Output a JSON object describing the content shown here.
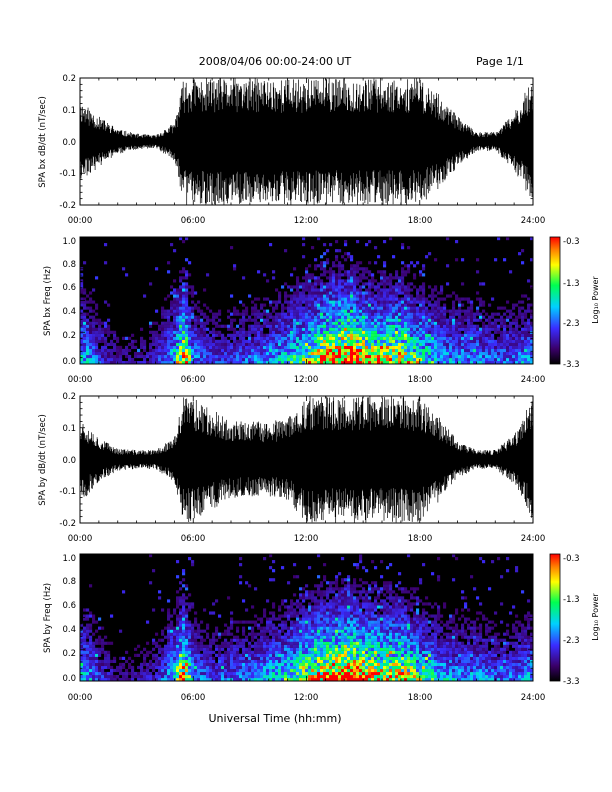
{
  "header": {
    "title": "2008/04/06  00:00-24:00 UT",
    "page": "Page 1/1"
  },
  "xaxis": {
    "label": "Universal Time (hh:mm)",
    "ticks": [
      "00:00",
      "06:00",
      "12:00",
      "18:00",
      "24:00"
    ]
  },
  "colorbar": {
    "label": "Log₁₀ Power",
    "ticks": [
      "-0.3",
      "-1.3",
      "-2.3",
      "-3.3"
    ]
  },
  "colors": {
    "background": "#ffffff",
    "trace": "#000000",
    "spectrogram_bg": "#000000"
  },
  "chart_data": [
    {
      "type": "line",
      "ylabel": "SPA bx dB/dt (nT/sec)",
      "xlim": [
        0,
        24
      ],
      "ylim": [
        -0.2,
        0.2
      ],
      "yticks": [
        "0.2",
        "0.1",
        "0.0",
        "-0.1",
        "-0.2"
      ],
      "x_unit": "hours UT",
      "envelope": {
        "x": [
          0,
          1,
          2,
          3,
          4,
          5,
          5.5,
          6,
          8,
          10,
          11,
          12,
          13,
          14,
          15,
          16,
          17,
          18,
          19,
          20,
          21,
          22,
          23,
          24
        ],
        "upper": [
          0.13,
          0.08,
          0.04,
          0.025,
          0.02,
          0.06,
          0.2,
          0.2,
          0.2,
          0.2,
          0.2,
          0.2,
          0.2,
          0.2,
          0.2,
          0.2,
          0.2,
          0.2,
          0.15,
          0.08,
          0.03,
          0.03,
          0.09,
          0.2
        ],
        "lower": [
          -0.13,
          -0.08,
          -0.04,
          -0.025,
          -0.02,
          -0.06,
          -0.2,
          -0.2,
          -0.2,
          -0.2,
          -0.2,
          -0.2,
          -0.2,
          -0.2,
          -0.2,
          -0.2,
          -0.2,
          -0.2,
          -0.15,
          -0.08,
          -0.03,
          -0.03,
          -0.09,
          -0.2
        ]
      }
    },
    {
      "type": "heatmap",
      "ylabel": "SPA bx Freq (Hz)",
      "xlim": [
        0,
        24
      ],
      "ylim": [
        0,
        1.0
      ],
      "yticks": [
        "1.0",
        "0.8",
        "0.6",
        "0.4",
        "0.2",
        "0.0"
      ],
      "zlabel": "Log10 Power",
      "zlim": [
        -3.3,
        -0.3
      ],
      "activity": {
        "x": [
          0,
          1,
          2,
          3,
          4,
          5,
          5.5,
          6,
          7,
          8,
          9,
          10,
          11,
          12,
          13,
          14,
          15,
          16,
          17,
          18,
          19,
          20,
          21,
          22,
          23,
          24
        ],
        "level": [
          0.5,
          0.25,
          0.15,
          0.15,
          0.2,
          0.45,
          0.85,
          0.35,
          0.25,
          0.25,
          0.3,
          0.35,
          0.45,
          0.6,
          0.85,
          1.0,
          0.8,
          0.7,
          0.75,
          0.55,
          0.4,
          0.35,
          0.35,
          0.3,
          0.3,
          0.4
        ]
      }
    },
    {
      "type": "line",
      "ylabel": "SPA by dB/dt (nT/sec)",
      "xlim": [
        0,
        24
      ],
      "ylim": [
        -0.2,
        0.2
      ],
      "yticks": [
        "0.2",
        "0.1",
        "0.0",
        "-0.1",
        "-0.2"
      ],
      "x_unit": "hours UT",
      "envelope": {
        "x": [
          0,
          1,
          2,
          3,
          4,
          5,
          5.5,
          6,
          8,
          10,
          11,
          12,
          13,
          14,
          15,
          16,
          17,
          18,
          19,
          20,
          21,
          22,
          23,
          24
        ],
        "upper": [
          0.14,
          0.07,
          0.035,
          0.03,
          0.03,
          0.07,
          0.2,
          0.2,
          0.12,
          0.12,
          0.13,
          0.2,
          0.2,
          0.2,
          0.2,
          0.2,
          0.2,
          0.2,
          0.14,
          0.06,
          0.03,
          0.03,
          0.08,
          0.2
        ],
        "lower": [
          -0.14,
          -0.07,
          -0.035,
          -0.03,
          -0.03,
          -0.07,
          -0.2,
          -0.2,
          -0.12,
          -0.12,
          -0.13,
          -0.2,
          -0.2,
          -0.2,
          -0.2,
          -0.2,
          -0.2,
          -0.2,
          -0.14,
          -0.06,
          -0.03,
          -0.03,
          -0.08,
          -0.2
        ]
      }
    },
    {
      "type": "heatmap",
      "ylabel": "SPA by Freq (Hz)",
      "xlim": [
        0,
        24
      ],
      "ylim": [
        0,
        1.0
      ],
      "yticks": [
        "1.0",
        "0.8",
        "0.6",
        "0.4",
        "0.2",
        "0.0"
      ],
      "zlabel": "Log10 Power",
      "zlim": [
        -3.3,
        -0.3
      ],
      "activity": {
        "x": [
          0,
          1,
          2,
          3,
          4,
          5,
          5.5,
          6,
          7,
          8,
          9,
          10,
          11,
          12,
          13,
          14,
          15,
          16,
          17,
          18,
          19,
          20,
          21,
          22,
          23,
          24
        ],
        "level": [
          0.5,
          0.25,
          0.15,
          0.15,
          0.2,
          0.45,
          0.85,
          0.35,
          0.25,
          0.3,
          0.3,
          0.4,
          0.5,
          0.65,
          0.85,
          0.95,
          0.85,
          0.75,
          0.75,
          0.55,
          0.4,
          0.35,
          0.35,
          0.3,
          0.3,
          0.4
        ]
      }
    }
  ]
}
